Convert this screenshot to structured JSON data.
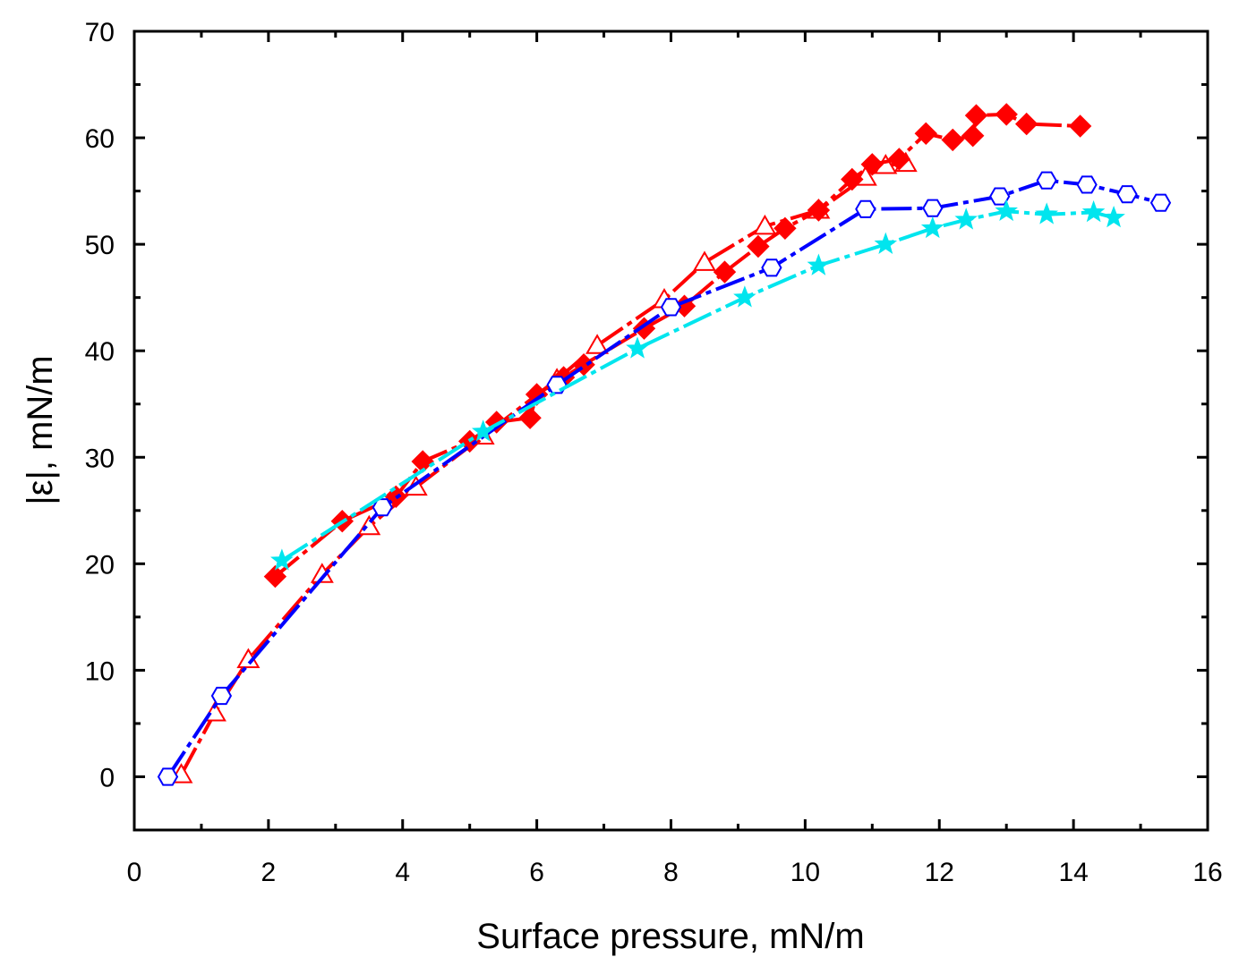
{
  "chart_data": {
    "type": "line",
    "title": "",
    "xlabel": "Surface pressure, mN/m",
    "ylabel": "|ε|, mN/m",
    "xlim": [
      0,
      16
    ],
    "ylim": [
      -5,
      70
    ],
    "xticks": [
      0,
      2,
      4,
      6,
      8,
      10,
      12,
      14,
      16
    ],
    "yticks": [
      0,
      10,
      20,
      30,
      40,
      50,
      60,
      70
    ],
    "grid": false,
    "legend": "none",
    "series": [
      {
        "name": "open-triangle",
        "marker": "triangle-open",
        "color": "#ff0000",
        "line": "dash",
        "x": [
          0.7,
          1.2,
          1.7,
          2.8,
          3.5,
          4.2,
          5.2,
          6.3,
          6.9,
          7.9,
          8.5,
          9.4,
          10.2,
          10.9,
          11.2,
          11.5
        ],
        "y": [
          0.2,
          6.0,
          11.0,
          19.0,
          23.5,
          27.2,
          32.0,
          37.3,
          40.5,
          44.8,
          48.3,
          51.7,
          53.2,
          56.3,
          57.4,
          57.6
        ]
      },
      {
        "name": "filled-diamond",
        "marker": "diamond-filled",
        "color": "#ff0000",
        "line": "dash",
        "x": [
          2.1,
          3.1,
          3.9,
          4.3,
          5.0,
          5.4,
          5.9,
          6.0,
          6.4,
          6.7,
          7.6,
          8.2,
          8.8,
          9.3,
          9.7,
          10.2,
          10.7,
          11.0,
          11.4,
          11.8,
          12.2,
          12.5,
          12.55,
          13.0,
          13.3,
          14.1
        ],
        "y": [
          18.8,
          24.0,
          26.3,
          29.6,
          31.5,
          33.3,
          33.7,
          35.9,
          37.5,
          38.7,
          42.1,
          44.2,
          47.4,
          49.8,
          51.5,
          53.2,
          56.1,
          57.5,
          58.0,
          60.4,
          59.8,
          60.2,
          62.1,
          62.2,
          61.3,
          61.1
        ]
      },
      {
        "name": "open-hexagon",
        "marker": "hexagon-open",
        "color": "#0000ff",
        "line": "dash",
        "x": [
          0.5,
          1.3,
          3.7,
          6.3,
          8.0,
          9.5,
          10.9,
          11.9,
          12.9,
          13.6,
          14.2,
          14.8,
          15.3
        ],
        "y": [
          0.0,
          7.6,
          25.3,
          36.8,
          44.1,
          47.8,
          53.3,
          53.4,
          54.5,
          56.0,
          55.6,
          54.7,
          53.9
        ]
      },
      {
        "name": "filled-star",
        "marker": "star-filled",
        "color": "#00e5ee",
        "line": "dash",
        "x": [
          2.2,
          5.2,
          7.5,
          9.1,
          10.2,
          11.2,
          11.9,
          12.4,
          13.0,
          13.6,
          14.3,
          14.6
        ],
        "y": [
          20.3,
          32.4,
          40.2,
          45.0,
          48.0,
          50.0,
          51.5,
          52.3,
          53.1,
          52.8,
          53.0,
          52.5
        ]
      }
    ]
  }
}
